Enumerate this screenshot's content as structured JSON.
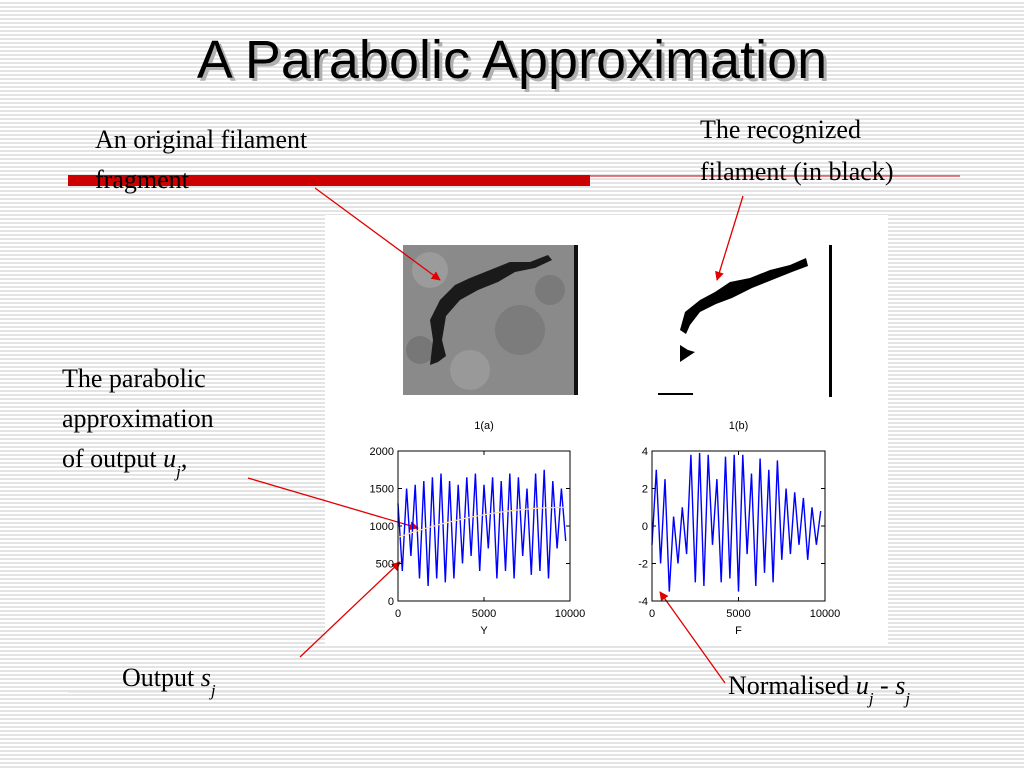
{
  "title": "A Parabolic Approximation",
  "annotations": [
    {
      "lines": [
        [
          {
            "text": "An original filament"
          }
        ],
        [
          {
            "text": "fragment"
          }
        ]
      ]
    },
    {
      "lines": [
        [
          {
            "text": "The recognized"
          }
        ],
        [
          {
            "text": "filament (in black)"
          }
        ]
      ]
    },
    {
      "lines": [
        [
          {
            "text": "The parabolic"
          }
        ],
        [
          {
            "text": "approximation"
          }
        ],
        [
          {
            "text": "of output "
          },
          {
            "text": "u",
            "italic": true
          },
          {
            "text": "j",
            "italic": true,
            "sub": true
          },
          {
            "text": ","
          }
        ]
      ]
    },
    {
      "lines": [
        [
          {
            "text": "Output "
          },
          {
            "text": "s",
            "italic": true
          },
          {
            "text": "j",
            "italic": true,
            "sub": true
          }
        ]
      ]
    },
    {
      "lines": [
        [
          {
            "text": "Normalised "
          },
          {
            "text": "u",
            "italic": true
          },
          {
            "text": "j",
            "italic": true,
            "sub": true
          },
          {
            "text": " - "
          },
          {
            "text": "s",
            "italic": true
          },
          {
            "text": "j",
            "italic": true,
            "sub": true
          }
        ]
      ]
    }
  ],
  "chart_data": [
    {
      "type": "line",
      "title": "1(a)",
      "xlabel": "Y",
      "xlim": [
        0,
        10000
      ],
      "xticks": [
        0,
        5000,
        10000
      ],
      "ylim": [
        0,
        2000
      ],
      "yticks": [
        0,
        500,
        1000,
        1500,
        2000
      ],
      "x": [
        0,
        250,
        500,
        750,
        1000,
        1250,
        1500,
        1750,
        2000,
        2250,
        2500,
        2750,
        3000,
        3250,
        3500,
        3750,
        4000,
        4250,
        4500,
        4750,
        5000,
        5250,
        5500,
        5750,
        6000,
        6250,
        6500,
        6750,
        7000,
        7250,
        7500,
        7750,
        8000,
        8250,
        8500,
        8750,
        9000,
        9250,
        9500,
        9750
      ],
      "series": [
        {
          "color": "#0000ff",
          "values": [
            1300,
            400,
            1500,
            600,
            1550,
            300,
            1600,
            200,
            1650,
            300,
            1700,
            250,
            1600,
            300,
            1550,
            500,
            1650,
            600,
            1700,
            400,
            1550,
            700,
            1650,
            300,
            1600,
            400,
            1700,
            300,
            1650,
            600,
            1500,
            350,
            1700,
            400,
            1750,
            300,
            1600,
            700,
            1500,
            800
          ]
        },
        {
          "color": "#ffe0a0",
          "values": [
            850,
            870,
            889,
            908,
            926,
            944,
            961,
            978,
            994,
            1010,
            1025,
            1040,
            1054,
            1068,
            1081,
            1094,
            1106,
            1118,
            1129,
            1140,
            1150,
            1160,
            1169,
            1178,
            1186,
            1194,
            1201,
            1208,
            1214,
            1220,
            1225,
            1230,
            1234,
            1238,
            1241,
            1244,
            1246,
            1248,
            1249,
            1250
          ]
        }
      ]
    },
    {
      "type": "line",
      "title": "1(b)",
      "xlabel": "F",
      "xlim": [
        0,
        10000
      ],
      "xticks": [
        0,
        5000,
        10000
      ],
      "ylim": [
        -4,
        4
      ],
      "yticks": [
        -4,
        -2,
        0,
        2,
        4
      ],
      "x": [
        0,
        250,
        500,
        750,
        1000,
        1250,
        1500,
        1750,
        2000,
        2250,
        2500,
        2750,
        3000,
        3250,
        3500,
        3750,
        4000,
        4250,
        4500,
        4750,
        5000,
        5250,
        5500,
        5750,
        6000,
        6250,
        6500,
        6750,
        7000,
        7250,
        7500,
        7750,
        8000,
        8250,
        8500,
        8750,
        9000,
        9250,
        9500,
        9750
      ],
      "series": [
        {
          "color": "#0000ff",
          "values": [
            -1,
            3,
            -2,
            2.5,
            -3.5,
            0.5,
            -2,
            1,
            -1.5,
            3.8,
            -3,
            3.9,
            -3.2,
            3.8,
            -1,
            2.5,
            -3,
            3.7,
            -2.8,
            3.8,
            -3.5,
            3.8,
            -1.5,
            2.8,
            -3.2,
            3.6,
            -2.5,
            3,
            -3,
            3.5,
            -1.8,
            2,
            -1.5,
            1.8,
            -1,
            1.5,
            -1.8,
            1,
            -1,
            0.8
          ]
        }
      ]
    }
  ]
}
